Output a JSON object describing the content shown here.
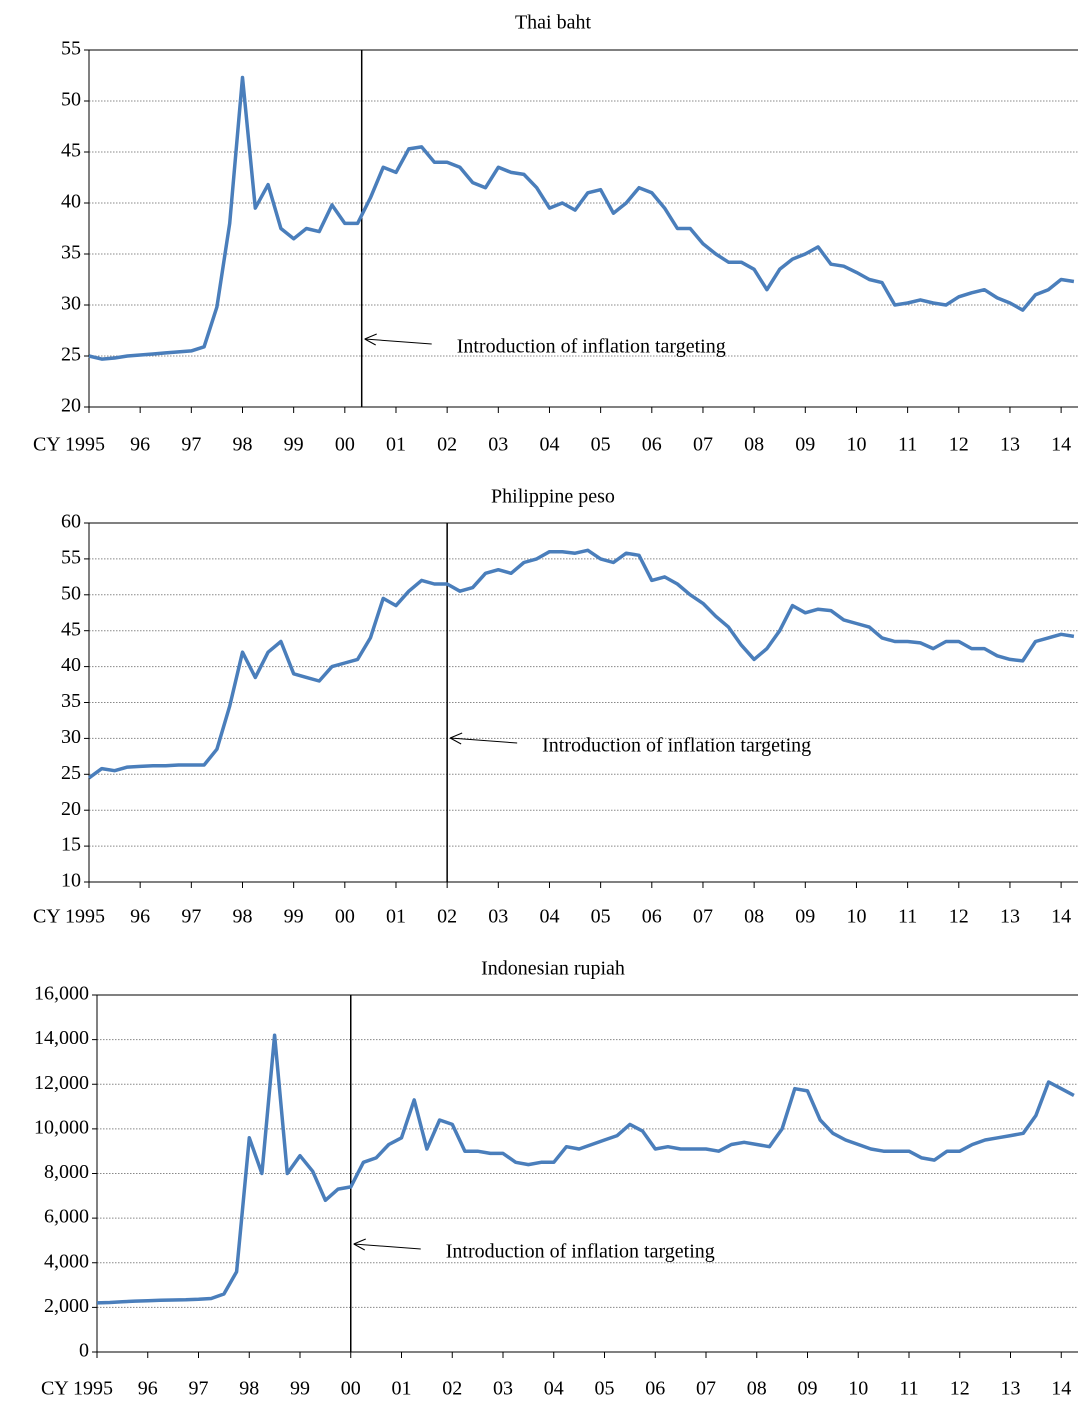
{
  "chart_data": [
    {
      "type": "line",
      "title": "Thai baht",
      "color": "#4a7ebb",
      "grid": true,
      "annotation": {
        "text": "Introduction of inflation targeting",
        "x": 2000.33
      },
      "xlim": [
        1995,
        2014.33
      ],
      "xticks": [
        {
          "value": 1995,
          "label": "CY 1995"
        },
        {
          "value": 1996,
          "label": "96"
        },
        {
          "value": 1997,
          "label": "97"
        },
        {
          "value": 1998,
          "label": "98"
        },
        {
          "value": 1999,
          "label": "99"
        },
        {
          "value": 2000,
          "label": "00"
        },
        {
          "value": 2001,
          "label": "01"
        },
        {
          "value": 2002,
          "label": "02"
        },
        {
          "value": 2003,
          "label": "03"
        },
        {
          "value": 2004,
          "label": "04"
        },
        {
          "value": 2005,
          "label": "05"
        },
        {
          "value": 2006,
          "label": "06"
        },
        {
          "value": 2007,
          "label": "07"
        },
        {
          "value": 2008,
          "label": "08"
        },
        {
          "value": 2009,
          "label": "09"
        },
        {
          "value": 2010,
          "label": "10"
        },
        {
          "value": 2011,
          "label": "11"
        },
        {
          "value": 2012,
          "label": "12"
        },
        {
          "value": 2013,
          "label": "13"
        },
        {
          "value": 2014,
          "label": "14"
        }
      ],
      "ylim": [
        20,
        55
      ],
      "yticks": [
        20,
        25,
        30,
        35,
        40,
        45,
        50,
        55
      ],
      "x": [
        1995,
        1995.25,
        1995.5,
        1995.75,
        1996,
        1996.25,
        1996.5,
        1996.75,
        1997,
        1997.25,
        1997.5,
        1997.75,
        1998,
        1998.25,
        1998.5,
        1998.75,
        1999,
        1999.25,
        1999.5,
        1999.75,
        2000,
        2000.25,
        2000.5,
        2000.75,
        2001,
        2001.25,
        2001.5,
        2001.75,
        2002,
        2002.25,
        2002.5,
        2002.75,
        2003,
        2003.25,
        2003.5,
        2003.75,
        2004,
        2004.25,
        2004.5,
        2004.75,
        2005,
        2005.25,
        2005.5,
        2005.75,
        2006,
        2006.25,
        2006.5,
        2006.75,
        2007,
        2007.25,
        2007.5,
        2007.75,
        2008,
        2008.25,
        2008.5,
        2008.75,
        2009,
        2009.25,
        2009.5,
        2009.75,
        2010,
        2010.25,
        2010.5,
        2010.75,
        2011,
        2011.25,
        2011.5,
        2011.75,
        2012,
        2012.25,
        2012.5,
        2012.75,
        2013,
        2013.25,
        2013.5,
        2013.75,
        2014,
        2014.25
      ],
      "values": [
        25.0,
        24.7,
        24.8,
        25.0,
        25.1,
        25.2,
        25.3,
        25.4,
        25.5,
        25.9,
        29.8,
        38,
        52.3,
        39.5,
        41.8,
        37.5,
        36.5,
        37.5,
        37.2,
        39.8,
        38,
        38.0,
        40.5,
        43.5,
        43,
        45.3,
        45.5,
        44,
        44,
        43.5,
        42,
        41.5,
        43.5,
        43,
        42.8,
        41.5,
        39.5,
        40,
        39.3,
        41,
        41.3,
        39,
        40,
        41.5,
        41,
        39.5,
        37.5,
        37.5,
        36,
        35,
        34.2,
        34.2,
        33.5,
        31.5,
        33.5,
        34.5,
        35,
        35.7,
        34,
        33.8,
        33.2,
        32.5,
        32.2,
        30,
        30.2,
        30.5,
        30.2,
        30,
        30.8,
        31.2,
        31.5,
        30.7,
        30.2,
        29.5,
        31,
        31.5,
        32.5,
        32.3
      ]
    },
    {
      "type": "line",
      "title": "Philippine peso",
      "color": "#4a7ebb",
      "grid": true,
      "annotation": {
        "text": "Introduction of inflation targeting",
        "x": 2002.0
      },
      "xlim": [
        1995,
        2014.33
      ],
      "xticks": [
        {
          "value": 1995,
          "label": "CY 1995"
        },
        {
          "value": 1996,
          "label": "96"
        },
        {
          "value": 1997,
          "label": "97"
        },
        {
          "value": 1998,
          "label": "98"
        },
        {
          "value": 1999,
          "label": "99"
        },
        {
          "value": 2000,
          "label": "00"
        },
        {
          "value": 2001,
          "label": "01"
        },
        {
          "value": 2002,
          "label": "02"
        },
        {
          "value": 2003,
          "label": "03"
        },
        {
          "value": 2004,
          "label": "04"
        },
        {
          "value": 2005,
          "label": "05"
        },
        {
          "value": 2006,
          "label": "06"
        },
        {
          "value": 2007,
          "label": "07"
        },
        {
          "value": 2008,
          "label": "08"
        },
        {
          "value": 2009,
          "label": "09"
        },
        {
          "value": 2010,
          "label": "10"
        },
        {
          "value": 2011,
          "label": "11"
        },
        {
          "value": 2012,
          "label": "12"
        },
        {
          "value": 2013,
          "label": "13"
        },
        {
          "value": 2014,
          "label": "14"
        }
      ],
      "ylim": [
        10,
        60
      ],
      "yticks": [
        10,
        15,
        20,
        25,
        30,
        35,
        40,
        45,
        50,
        55,
        60
      ],
      "x": [
        1995,
        1995.25,
        1995.5,
        1995.75,
        1996,
        1996.25,
        1996.5,
        1996.75,
        1997,
        1997.25,
        1997.5,
        1997.75,
        1998,
        1998.25,
        1998.5,
        1998.75,
        1999,
        1999.25,
        1999.5,
        1999.75,
        2000,
        2000.25,
        2000.5,
        2000.75,
        2001,
        2001.25,
        2001.5,
        2001.75,
        2002,
        2002.25,
        2002.5,
        2002.75,
        2003,
        2003.25,
        2003.5,
        2003.75,
        2004,
        2004.25,
        2004.5,
        2004.75,
        2005,
        2005.25,
        2005.5,
        2005.75,
        2006,
        2006.25,
        2006.5,
        2006.75,
        2007,
        2007.25,
        2007.5,
        2007.75,
        2008,
        2008.25,
        2008.5,
        2008.75,
        2009,
        2009.25,
        2009.5,
        2009.75,
        2010,
        2010.25,
        2010.5,
        2010.75,
        2011,
        2011.25,
        2011.5,
        2011.75,
        2012,
        2012.25,
        2012.5,
        2012.75,
        2013,
        2013.25,
        2013.5,
        2013.75,
        2014,
        2014.25
      ],
      "values": [
        24.5,
        25.8,
        25.5,
        26,
        26.1,
        26.2,
        26.2,
        26.3,
        26.3,
        26.3,
        28.5,
        34.5,
        42,
        38.5,
        42,
        43.5,
        39,
        38.5,
        38,
        40,
        40.5,
        41,
        44,
        49.5,
        48.5,
        50.5,
        52,
        51.5,
        51.5,
        50.5,
        51,
        53,
        53.5,
        53,
        54.5,
        55,
        56,
        56,
        55.8,
        56.2,
        55,
        54.5,
        55.8,
        55.5,
        52,
        52.5,
        51.5,
        50,
        48.8,
        47,
        45.5,
        43,
        41,
        42.5,
        45,
        48.5,
        47.5,
        48,
        47.8,
        46.5,
        46,
        45.5,
        44,
        43.5,
        43.5,
        43.3,
        42.5,
        43.5,
        43.5,
        42.5,
        42.5,
        41.5,
        41,
        40.8,
        43.5,
        44,
        44.5,
        44.2
      ]
    },
    {
      "type": "line",
      "title": "Indonesian rupiah",
      "color": "#4a7ebb",
      "grid": true,
      "annotation": {
        "text": "Introduction of inflation targeting",
        "x": 2000.0
      },
      "xlim": [
        1995,
        2014.33
      ],
      "xticks": [
        {
          "value": 1995,
          "label": "CY 1995"
        },
        {
          "value": 1996,
          "label": "96"
        },
        {
          "value": 1997,
          "label": "97"
        },
        {
          "value": 1998,
          "label": "98"
        },
        {
          "value": 1999,
          "label": "99"
        },
        {
          "value": 2000,
          "label": "00"
        },
        {
          "value": 2001,
          "label": "01"
        },
        {
          "value": 2002,
          "label": "02"
        },
        {
          "value": 2003,
          "label": "03"
        },
        {
          "value": 2004,
          "label": "04"
        },
        {
          "value": 2005,
          "label": "05"
        },
        {
          "value": 2006,
          "label": "06"
        },
        {
          "value": 2007,
          "label": "07"
        },
        {
          "value": 2008,
          "label": "08"
        },
        {
          "value": 2009,
          "label": "09"
        },
        {
          "value": 2010,
          "label": "10"
        },
        {
          "value": 2011,
          "label": "11"
        },
        {
          "value": 2012,
          "label": "12"
        },
        {
          "value": 2013,
          "label": "13"
        },
        {
          "value": 2014,
          "label": "14"
        }
      ],
      "ylim": [
        0,
        16000
      ],
      "yticks": [
        0,
        {
          "value": 2000,
          "label": "2,000"
        },
        {
          "value": 4000,
          "label": "4,000"
        },
        {
          "value": 6000,
          "label": "6,000"
        },
        {
          "value": 8000,
          "label": "8,000"
        },
        {
          "value": 10000,
          "label": "10,000"
        },
        {
          "value": 12000,
          "label": "12,000"
        },
        {
          "value": 14000,
          "label": "14,000"
        },
        {
          "value": 16000,
          "label": "16,000"
        }
      ],
      "x": [
        1995,
        1995.25,
        1995.5,
        1995.75,
        1996,
        1996.25,
        1996.5,
        1996.75,
        1997,
        1997.25,
        1997.5,
        1997.75,
        1998,
        1998.25,
        1998.5,
        1998.75,
        1999,
        1999.25,
        1999.5,
        1999.75,
        2000,
        2000.25,
        2000.5,
        2000.75,
        2001,
        2001.25,
        2001.5,
        2001.75,
        2002,
        2002.25,
        2002.5,
        2002.75,
        2003,
        2003.25,
        2003.5,
        2003.75,
        2004,
        2004.25,
        2004.5,
        2004.75,
        2005,
        2005.25,
        2005.5,
        2005.75,
        2006,
        2006.25,
        2006.5,
        2006.75,
        2007,
        2007.25,
        2007.5,
        2007.75,
        2008,
        2008.25,
        2008.5,
        2008.75,
        2009,
        2009.25,
        2009.5,
        2009.75,
        2010,
        2010.25,
        2010.5,
        2010.75,
        2011,
        2011.25,
        2011.5,
        2011.75,
        2012,
        2012.25,
        2012.5,
        2012.75,
        2013,
        2013.25,
        2013.5,
        2013.75,
        2014,
        2014.25
      ],
      "values": [
        2200,
        2220,
        2250,
        2280,
        2300,
        2320,
        2330,
        2340,
        2360,
        2400,
        2600,
        3600,
        9600,
        8000,
        14200,
        8000,
        8800,
        8100,
        6800,
        7300,
        7400,
        8500,
        8700,
        9300,
        9600,
        11300,
        9100,
        10400,
        10200,
        9000,
        9000,
        8900,
        8900,
        8500,
        8400,
        8500,
        8500,
        9200,
        9100,
        9300,
        9500,
        9700,
        10200,
        9900,
        9100,
        9200,
        9100,
        9100,
        9100,
        9000,
        9300,
        9400,
        9300,
        9200,
        10000,
        11800,
        11700,
        10400,
        9800,
        9500,
        9300,
        9100,
        9000,
        9000,
        9000,
        8700,
        8600,
        9000,
        9000,
        9300,
        9500,
        9600,
        9700,
        9800,
        10600,
        12100,
        11800,
        11500
      ]
    }
  ]
}
